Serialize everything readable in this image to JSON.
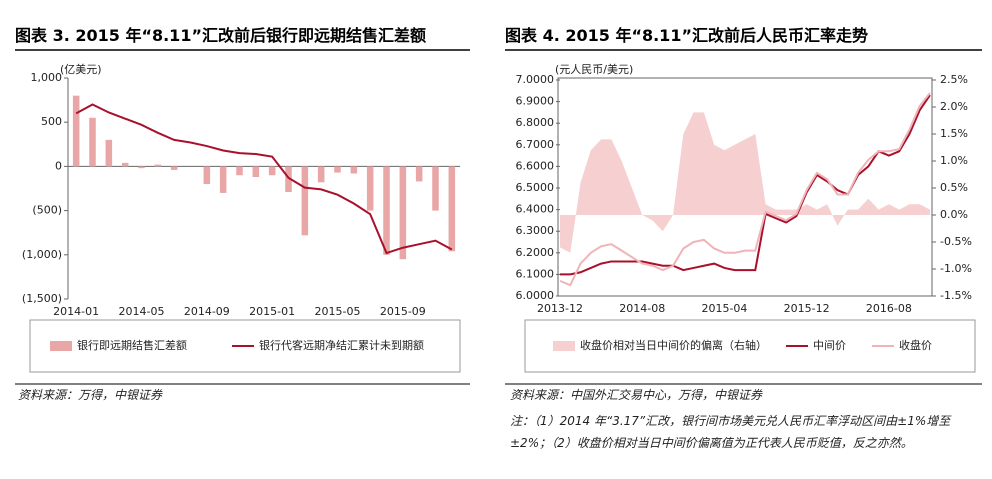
{
  "chart_data": [
    {
      "type": "combo",
      "title": "图表 3. 2015 年“8.11”汇改前后银行即远期结售汇差额",
      "unit_label": "(亿美元)",
      "categories": [
        "2014-01",
        null,
        null,
        null,
        "2014-05",
        null,
        null,
        null,
        "2014-09",
        null,
        null,
        null,
        "2015-01",
        null,
        null,
        null,
        "2015-05",
        null,
        null,
        null,
        "2015-09",
        null,
        null,
        null
      ],
      "ylim": [
        -1500,
        1000
      ],
      "yticks": [
        {
          "value": 1000,
          "label": "1,000"
        },
        500,
        0,
        {
          "value": -500,
          "label": "(500)"
        },
        {
          "value": -1000,
          "label": "(1,000)"
        },
        {
          "value": -1500,
          "label": "(1,500)"
        }
      ],
      "series": [
        {
          "name": "银行即远期结售汇差额",
          "type": "bar",
          "color": "#e8a6a6",
          "values": [
            800,
            550,
            300,
            40,
            -20,
            20,
            -40,
            0,
            -200,
            -300,
            -100,
            -120,
            -100,
            -290,
            -780,
            -180,
            -70,
            -80,
            -500,
            -1000,
            -1050,
            -170,
            -500,
            -960
          ]
        },
        {
          "name": "银行代客远期净结汇累计未到期额",
          "type": "line",
          "color": "#a8102c",
          "values": [
            600,
            700,
            610,
            540,
            470,
            380,
            300,
            270,
            230,
            180,
            150,
            140,
            110,
            -130,
            -240,
            -260,
            -320,
            -420,
            -540,
            -980,
            -920,
            -880,
            -840,
            -940
          ]
        }
      ],
      "source": "资料来源：万得，中银证券"
    },
    {
      "type": "combo",
      "title": "图表 4. 2015 年“8.11”汇改前后人民币汇率走势",
      "unit_label": "(元人民币/美元)",
      "categories": [
        "2013-12",
        null,
        null,
        null,
        null,
        null,
        null,
        null,
        "2014-08",
        null,
        null,
        null,
        null,
        null,
        null,
        null,
        "2015-04",
        null,
        null,
        null,
        null,
        null,
        null,
        null,
        "2015-12",
        null,
        null,
        null,
        null,
        null,
        null,
        null,
        "2016-08",
        null,
        null,
        null,
        null
      ],
      "ylim": [
        6.0,
        7.0
      ],
      "yticks": [
        {
          "value": 7.0,
          "label": "7.0000"
        },
        {
          "value": 6.9,
          "label": "6.9000"
        },
        {
          "value": 6.8,
          "label": "6.8000"
        },
        {
          "value": 6.7,
          "label": "6.7000"
        },
        {
          "value": 6.6,
          "label": "6.6000"
        },
        {
          "value": 6.5,
          "label": "6.5000"
        },
        {
          "value": 6.4,
          "label": "6.4000"
        },
        {
          "value": 6.3,
          "label": "6.3000"
        },
        {
          "value": 6.2,
          "label": "6.2000"
        },
        {
          "value": 6.1,
          "label": "6.1000"
        },
        {
          "value": 6.0,
          "label": "6.0000"
        }
      ],
      "y2lim": [
        -1.5,
        2.5
      ],
      "y2ticks": [
        {
          "value": 2.5,
          "label": "2.5%"
        },
        {
          "value": 2.0,
          "label": "2.0%"
        },
        {
          "value": 1.5,
          "label": "1.5%"
        },
        {
          "value": 1.0,
          "label": "1.0%"
        },
        {
          "value": 0.5,
          "label": "0.5%"
        },
        {
          "value": 0,
          "label": "0.0%"
        },
        {
          "value": -0.5,
          "label": "-0.5%"
        },
        {
          "value": -1.0,
          "label": "-1.0%"
        },
        {
          "value": -1.5,
          "label": "-1.5%"
        }
      ],
      "series": [
        {
          "name": "收盘价相对当日中间价的偏离（右轴）",
          "type": "area",
          "axis": "y2",
          "color": "#f6d0d0",
          "values": [
            -0.6,
            -0.7,
            0.6,
            1.2,
            1.4,
            1.4,
            1.0,
            0.5,
            0.0,
            -0.1,
            -0.3,
            0.0,
            1.5,
            1.9,
            1.9,
            1.3,
            1.2,
            1.3,
            1.4,
            1.5,
            0.2,
            0.1,
            0.1,
            0.1,
            0.2,
            0.1,
            0.2,
            -0.2,
            0.1,
            0.1,
            0.3,
            0.1,
            0.2,
            0.1,
            0.2,
            0.2,
            0.1
          ]
        },
        {
          "name": "中间价",
          "type": "line",
          "color": "#a8102c",
          "values": [
            6.1,
            6.1,
            6.11,
            6.13,
            6.15,
            6.16,
            6.16,
            6.16,
            6.16,
            6.15,
            6.14,
            6.14,
            6.12,
            6.13,
            6.14,
            6.15,
            6.13,
            6.12,
            6.12,
            6.12,
            6.38,
            6.36,
            6.34,
            6.37,
            6.48,
            6.56,
            6.53,
            6.49,
            6.47,
            6.56,
            6.6,
            6.67,
            6.65,
            6.67,
            6.75,
            6.86,
            6.93
          ]
        },
        {
          "name": "收盘价",
          "type": "line",
          "color": "#f0b4b8",
          "values": [
            6.07,
            6.05,
            6.15,
            6.2,
            6.23,
            6.24,
            6.21,
            6.18,
            6.15,
            6.14,
            6.12,
            6.14,
            6.22,
            6.25,
            6.26,
            6.22,
            6.2,
            6.2,
            6.21,
            6.21,
            6.39,
            6.37,
            6.35,
            6.38,
            6.49,
            6.57,
            6.54,
            6.47,
            6.47,
            6.57,
            6.63,
            6.67,
            6.67,
            6.68,
            6.77,
            6.88,
            6.94
          ]
        }
      ],
      "source": "资料来源：中国外汇交易中心，万得，中银证券",
      "note": "注：（1）2014 年“3.17”汇改，银行间市场美元兑人民币汇率浮动区间由±1%增至±2%；（2）收盘价相对当日中间价偏离值为正代表人民币贬值，反之亦然。"
    }
  ]
}
